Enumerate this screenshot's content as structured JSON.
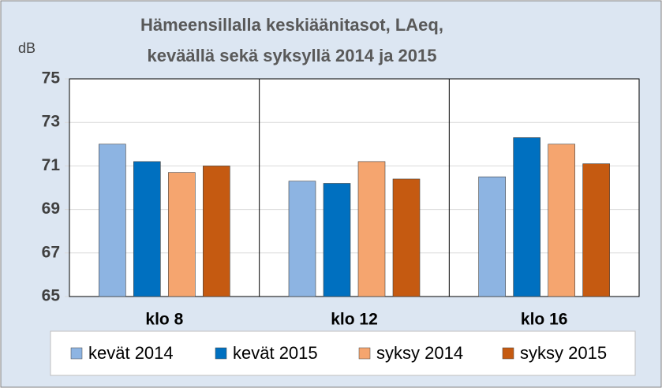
{
  "chart_data": {
    "type": "bar",
    "title": [
      "Hämeensillalla keskiäänitasot, LAeq,",
      "keväällä sekä syksyllä 2014 ja 2015"
    ],
    "y_label": "dB",
    "categories": [
      "klo 8",
      "klo 12",
      "klo 16"
    ],
    "series": [
      {
        "name": "kevät 2014",
        "color": "#8db4e2",
        "values": [
          72.0,
          70.3,
          70.5
        ]
      },
      {
        "name": "kevät 2015",
        "color": "#0070c0",
        "values": [
          71.2,
          70.2,
          72.3
        ]
      },
      {
        "name": "syksy 2014",
        "color": "#f5a56f",
        "values": [
          70.7,
          71.2,
          72.0
        ]
      },
      {
        "name": "syksy 2015",
        "color": "#c55a11",
        "values": [
          71.0,
          70.4,
          71.1
        ]
      }
    ],
    "ylim": [
      65,
      75
    ],
    "yticks": [
      65,
      67,
      69,
      71,
      73,
      75
    ],
    "grid": true,
    "legend": "bottom"
  }
}
